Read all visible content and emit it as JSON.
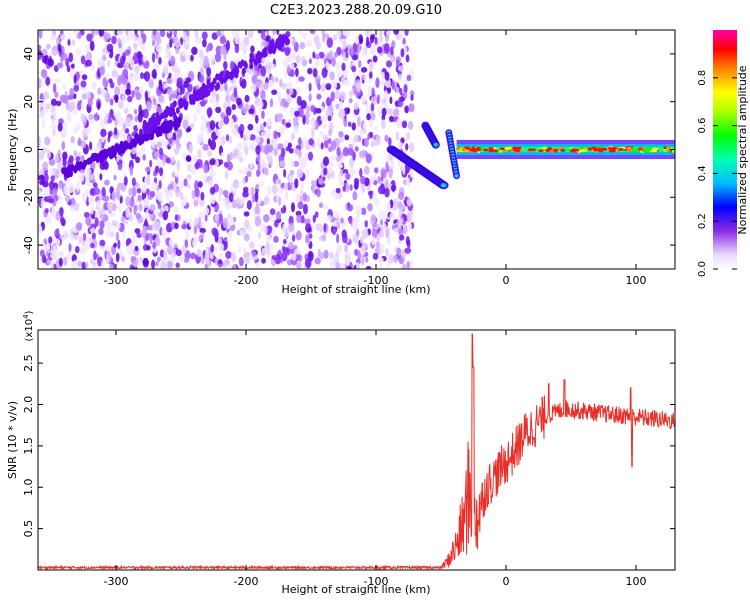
{
  "title": "C2E3.2023.288.20.09.G10",
  "chart_data": [
    {
      "type": "heatmap",
      "xlabel": "Height of straight line (km)",
      "ylabel": "Frequency (Hz)",
      "xlim": [
        -360,
        130
      ],
      "ylim": [
        -50,
        50
      ],
      "x_ticks": [
        -300,
        -200,
        -100,
        0,
        100
      ],
      "y_ticks": [
        -40,
        -20,
        0,
        20,
        40
      ],
      "colorbar": {
        "label": "Normalized spectral amplitude",
        "range": [
          0,
          1
        ],
        "ticks": [
          0.0,
          0.2,
          0.4,
          0.6,
          0.8
        ]
      },
      "regions": [
        {
          "x_range": [
            -360,
            -72
          ],
          "description": "noise"
        },
        {
          "x_range": [
            -88,
            -38
          ],
          "feature": "diagonal signal"
        },
        {
          "x_range": [
            -38,
            130
          ],
          "center_frequency": 0,
          "feature": "carrier"
        }
      ]
    },
    {
      "type": "line",
      "xlabel": "Height of straight line (km)",
      "ylabel": "SNR (10 * v/v)",
      "y_scale_note": "(x10",
      "y_scale_exp": "4",
      "y_scale_close": ")",
      "xlim": [
        -360,
        130
      ],
      "ylim": [
        0,
        2.9
      ],
      "x_ticks": [
        -300,
        -200,
        -100,
        0,
        100
      ],
      "y_ticks": [
        0.5,
        1.0,
        1.5,
        2.0,
        2.5
      ],
      "series_color": "#e8302a",
      "profile": [
        {
          "x": -360,
          "y": 0.03
        },
        {
          "x": -50,
          "y": 0.03
        },
        {
          "x": -45,
          "y": 0.1
        },
        {
          "x": -38,
          "y": 0.3
        },
        {
          "x": -32,
          "y": 0.6
        },
        {
          "x": -28,
          "y": 1.0
        },
        {
          "x": -24,
          "y": 0.6
        },
        {
          "x": -15,
          "y": 1.0
        },
        {
          "x": -5,
          "y": 1.2
        },
        {
          "x": 5,
          "y": 1.4
        },
        {
          "x": 15,
          "y": 1.65
        },
        {
          "x": 30,
          "y": 1.85
        },
        {
          "x": 45,
          "y": 1.95
        },
        {
          "x": 60,
          "y": 1.92
        },
        {
          "x": 80,
          "y": 1.88
        },
        {
          "x": 100,
          "y": 1.85
        },
        {
          "x": 130,
          "y": 1.8
        }
      ],
      "spikes": [
        {
          "x": -26,
          "y": 2.85
        },
        {
          "x": -25,
          "y": 2.45
        },
        {
          "x": 33,
          "y": 2.25
        },
        {
          "x": 45,
          "y": 2.3
        },
        {
          "x": 96,
          "y": 2.2
        },
        {
          "x": 97,
          "y": 1.25
        }
      ]
    }
  ]
}
